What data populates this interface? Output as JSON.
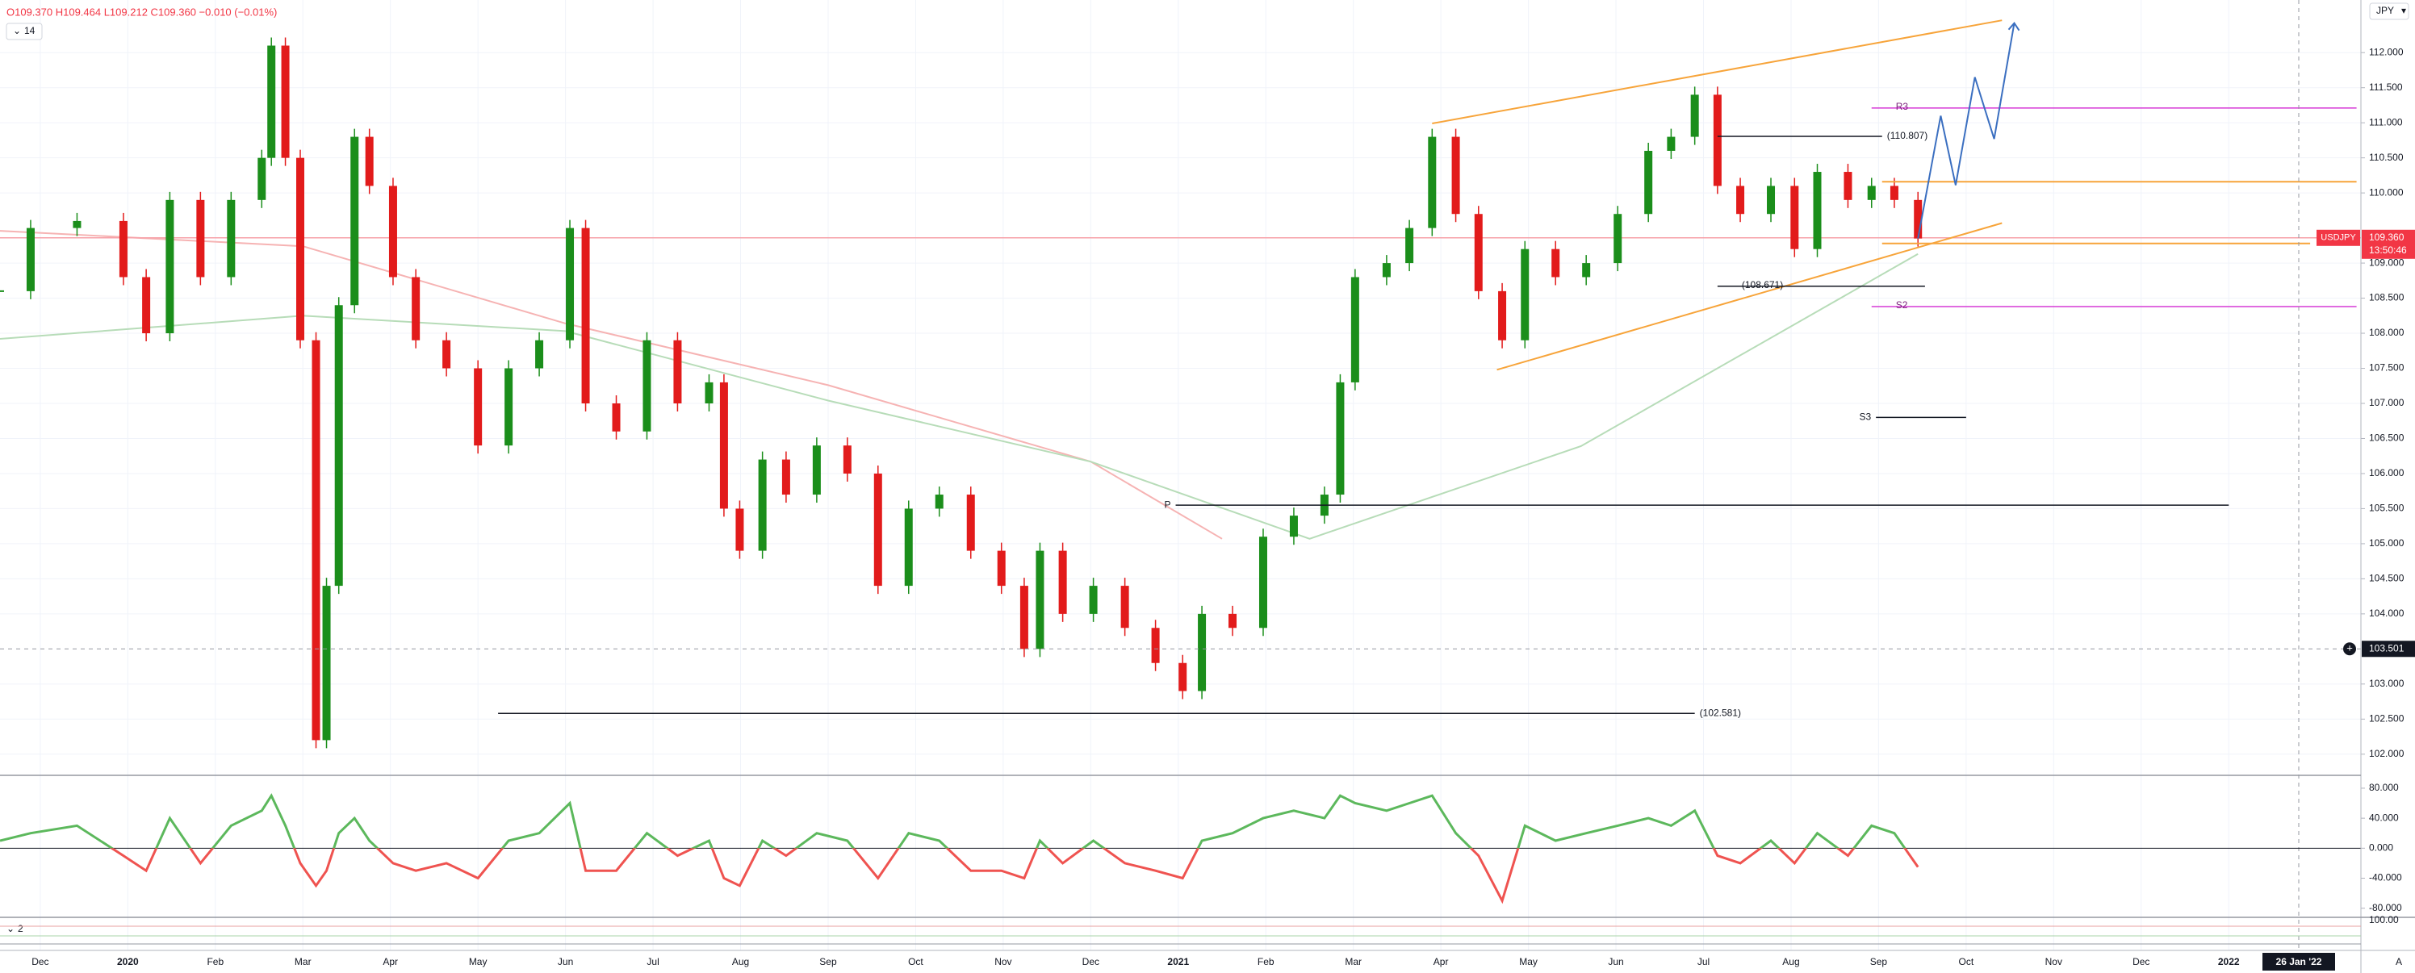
{
  "header": {
    "ohlc": "O109.370 H109.464 L109.212 C109.360 −0.010 (−0.01%)",
    "interval": "14",
    "currency": "JPY",
    "symbol": "USDJPY",
    "last_price": "109.360",
    "countdown": "13:50:46",
    "crosshair_time": "26 Jan '22",
    "scale_mode": "A",
    "pane3_index": "2",
    "pane3_top": "100.00"
  },
  "chart_data": [
    {
      "type": "candlestick",
      "up_color": "#1b8e1b",
      "down_color": "#e21b1b",
      "grid": true,
      "xlim": [
        -0.46,
        26.51
      ],
      "ylim": [
        101.71,
        112.75
      ],
      "x": [
        -0.46,
        -0.11,
        0.42,
        0.95,
        1.21,
        1.48,
        1.83,
        2.18,
        2.53,
        2.64,
        2.8,
        2.97,
        3.15,
        3.27,
        3.41,
        3.59,
        3.76,
        4.03,
        4.29,
        4.64,
        5.0,
        5.35,
        5.7,
        6.05,
        6.23,
        6.58,
        6.93,
        7.28,
        7.64,
        7.81,
        7.99,
        8.25,
        8.52,
        8.87,
        9.22,
        9.57,
        9.92,
        10.27,
        10.63,
        10.98,
        11.24,
        11.42,
        11.68,
        12.03,
        12.39,
        12.74,
        13.05,
        13.27,
        13.62,
        13.97,
        14.32,
        14.67,
        14.85,
        15.02,
        15.38,
        15.64,
        15.9,
        16.17,
        16.43,
        16.7,
        16.96,
        17.31,
        17.66,
        18.02,
        18.37,
        18.63,
        18.9,
        19.16,
        19.42,
        19.77,
        20.04,
        20.3,
        20.65,
        20.92,
        21.18,
        21.45
      ],
      "values": [
        108.6,
        109.5,
        109.6,
        108.8,
        108.0,
        109.9,
        108.8,
        109.9,
        110.5,
        112.1,
        110.5,
        107.9,
        102.2,
        104.4,
        108.4,
        110.8,
        110.1,
        108.8,
        107.9,
        107.5,
        106.4,
        107.5,
        107.9,
        109.5,
        107.0,
        106.6,
        107.9,
        107.0,
        107.3,
        105.5,
        104.9,
        106.2,
        105.7,
        106.4,
        106.0,
        104.4,
        105.5,
        105.7,
        104.9,
        104.4,
        103.5,
        104.9,
        104.0,
        104.4,
        103.8,
        103.3,
        102.9,
        104.0,
        103.8,
        105.1,
        105.4,
        105.7,
        107.3,
        108.8,
        109.0,
        109.5,
        110.8,
        109.7,
        108.6,
        107.9,
        109.2,
        108.8,
        109.0,
        109.7,
        110.6,
        110.8,
        111.4,
        110.1,
        109.7,
        110.1,
        109.2,
        110.3,
        109.9,
        110.1,
        109.9,
        109.35
      ],
      "xticks": [
        {
          "value": 0,
          "label": "Dec"
        },
        {
          "value": 1,
          "label": "2020"
        },
        {
          "value": 2,
          "label": "Feb"
        },
        {
          "value": 3,
          "label": "Mar"
        },
        {
          "value": 4,
          "label": "Apr"
        },
        {
          "value": 5,
          "label": "May"
        },
        {
          "value": 6,
          "label": "Jun"
        },
        {
          "value": 7,
          "label": "Jul"
        },
        {
          "value": 8,
          "label": "Aug"
        },
        {
          "value": 9,
          "label": "Sep"
        },
        {
          "value": 10,
          "label": "Oct"
        },
        {
          "value": 11,
          "label": "Nov"
        },
        {
          "value": 12,
          "label": "Dec"
        },
        {
          "value": 13,
          "label": "2021"
        },
        {
          "value": 14,
          "label": "Feb"
        },
        {
          "value": 15,
          "label": "Mar"
        },
        {
          "value": 16,
          "label": "Apr"
        },
        {
          "value": 17,
          "label": "May"
        },
        {
          "value": 18,
          "label": "Jun"
        },
        {
          "value": 19,
          "label": "Jul"
        },
        {
          "value": 20,
          "label": "Aug"
        },
        {
          "value": 21,
          "label": "Sep"
        },
        {
          "value": 22,
          "label": "Oct"
        },
        {
          "value": 23,
          "label": "Nov"
        },
        {
          "value": 24,
          "label": "Dec"
        },
        {
          "value": 25,
          "label": "2022"
        }
      ],
      "yticks": [
        {
          "value": 102,
          "label": "102.000"
        },
        {
          "value": 102.5,
          "label": "102.500"
        },
        {
          "value": 103,
          "label": "103.000"
        },
        {
          "value": 104,
          "label": "104.000"
        },
        {
          "value": 104.5,
          "label": "104.500"
        },
        {
          "value": 105,
          "label": "105.000"
        },
        {
          "value": 105.5,
          "label": "105.500"
        },
        {
          "value": 106,
          "label": "106.000"
        },
        {
          "value": 106.5,
          "label": "106.500"
        },
        {
          "value": 107,
          "label": "107.000"
        },
        {
          "value": 107.5,
          "label": "107.500"
        },
        {
          "value": 108,
          "label": "108.000"
        },
        {
          "value": 108.5,
          "label": "108.500"
        },
        {
          "value": 109,
          "label": "109.000"
        },
        {
          "value": 110,
          "label": "110.000"
        },
        {
          "value": 110.5,
          "label": "110.500"
        },
        {
          "value": 111,
          "label": "111.000"
        },
        {
          "value": 111.5,
          "label": "111.500"
        },
        {
          "value": 112,
          "label": "112.000"
        }
      ],
      "last_price_value": 109.36,
      "last_price_color": "#f23645",
      "crosshair": {
        "price": {
          "value": 103.501,
          "label": "103.501"
        },
        "x": 25.8
      },
      "levels": [
        {
          "label": "(110.807)",
          "value": 110.807,
          "x": [
            19.16,
            21.04
          ],
          "color": "#131722",
          "label_side": "right"
        },
        {
          "label": "(108.671)",
          "value": 108.671,
          "x": [
            19.16,
            21.53
          ],
          "color": "#131722",
          "label_side": "inside"
        },
        {
          "label": "(102.581)",
          "value": 102.581,
          "x": [
            5.23,
            18.9
          ],
          "color": "#131722",
          "label_side": "right"
        },
        {
          "label": "P",
          "value": 105.55,
          "x": [
            12.97,
            25.0
          ],
          "color": "#131722",
          "label_side": "left"
        },
        {
          "label": "S3",
          "value": 106.8,
          "x": [
            20.97,
            22.0
          ],
          "color": "#131722",
          "label_side": "left"
        },
        {
          "label": "R3",
          "value": 111.21,
          "x": [
            20.92,
            26.46
          ],
          "color": "#d63ad6",
          "label_side": "inside"
        },
        {
          "label": "S2",
          "value": 108.38,
          "x": [
            20.92,
            26.46
          ],
          "color": "#d63ad6",
          "label_side": "inside"
        }
      ],
      "hlines": [
        {
          "value": 110.16,
          "x": [
            21.04,
            26.46
          ],
          "color": "#f7a43a"
        },
        {
          "value": 109.28,
          "x": [
            21.04,
            25.93
          ],
          "color": "#f7a43a"
        }
      ],
      "trendlines": [
        {
          "x": [
            15.9,
            22.41
          ],
          "values": [
            110.99,
            112.46
          ],
          "color": "#f7a43a"
        },
        {
          "x": [
            16.64,
            22.41
          ],
          "values": [
            107.48,
            109.57
          ],
          "color": "#f7a43a"
        }
      ],
      "projection": {
        "x": [
          21.45,
          21.71,
          21.88,
          22.1,
          22.32,
          22.55
        ],
        "values": [
          109.35,
          111.1,
          110.11,
          111.65,
          110.77,
          112.42
        ],
        "color": "#3b6fc0"
      },
      "overlays": [
        {
          "color": "#f6b3b3",
          "x": [
            -0.46,
            3,
            6,
            9,
            12,
            13.5
          ],
          "values": [
            109.46,
            109.24,
            108.14,
            107.26,
            106.17,
            105.07
          ]
        },
        {
          "color": "#b7dcb8",
          "x": [
            -0.46,
            3,
            6,
            9,
            12,
            14.5,
            17.6,
            21.45
          ],
          "values": [
            107.92,
            108.25,
            108.03,
            107.04,
            106.17,
            105.07,
            106.39,
            109.13
          ]
        }
      ]
    },
    {
      "type": "line",
      "positive_color": "#5cb85c",
      "negative_color": "#ef5350",
      "xlim": [
        -0.46,
        26.51
      ],
      "ylim": [
        -90,
        95
      ],
      "x": [
        -0.46,
        -0.11,
        0.42,
        0.95,
        1.21,
        1.48,
        1.83,
        2.18,
        2.53,
        2.64,
        2.8,
        2.97,
        3.15,
        3.27,
        3.41,
        3.59,
        3.76,
        4.03,
        4.29,
        4.64,
        5.0,
        5.35,
        5.7,
        6.05,
        6.23,
        6.58,
        6.93,
        7.28,
        7.64,
        7.81,
        7.99,
        8.25,
        8.52,
        8.87,
        9.22,
        9.57,
        9.92,
        10.27,
        10.63,
        10.98,
        11.24,
        11.42,
        11.68,
        12.03,
        12.39,
        12.74,
        13.05,
        13.27,
        13.62,
        13.97,
        14.32,
        14.67,
        14.85,
        15.02,
        15.38,
        15.64,
        15.9,
        16.17,
        16.43,
        16.7,
        16.96,
        17.31,
        17.66,
        18.02,
        18.37,
        18.63,
        18.9,
        19.16,
        19.42,
        19.77,
        20.04,
        20.3,
        20.65,
        20.92,
        21.18,
        21.45
      ],
      "values": [
        10,
        20,
        30,
        -10,
        -30,
        40,
        -20,
        30,
        50,
        70,
        30,
        -20,
        -50,
        -30,
        20,
        40,
        10,
        -20,
        -30,
        -20,
        -40,
        10,
        20,
        60,
        -30,
        -30,
        20,
        -10,
        10,
        -40,
        -50,
        10,
        -10,
        20,
        10,
        -40,
        20,
        10,
        -30,
        -30,
        -40,
        10,
        -20,
        10,
        -20,
        -30,
        -40,
        10,
        20,
        40,
        50,
        40,
        70,
        60,
        50,
        60,
        70,
        20,
        -10,
        -70,
        30,
        10,
        20,
        30,
        40,
        30,
        50,
        -10,
        -20,
        10,
        -20,
        20,
        -10,
        30,
        20,
        -25
      ],
      "yticks": [
        {
          "value": 80,
          "label": "80.000"
        },
        {
          "value": 40,
          "label": "40.000"
        },
        {
          "value": 0,
          "label": "0.000"
        },
        {
          "value": -40,
          "label": "-40.000"
        },
        {
          "value": -80,
          "label": "-80.000"
        }
      ]
    }
  ]
}
